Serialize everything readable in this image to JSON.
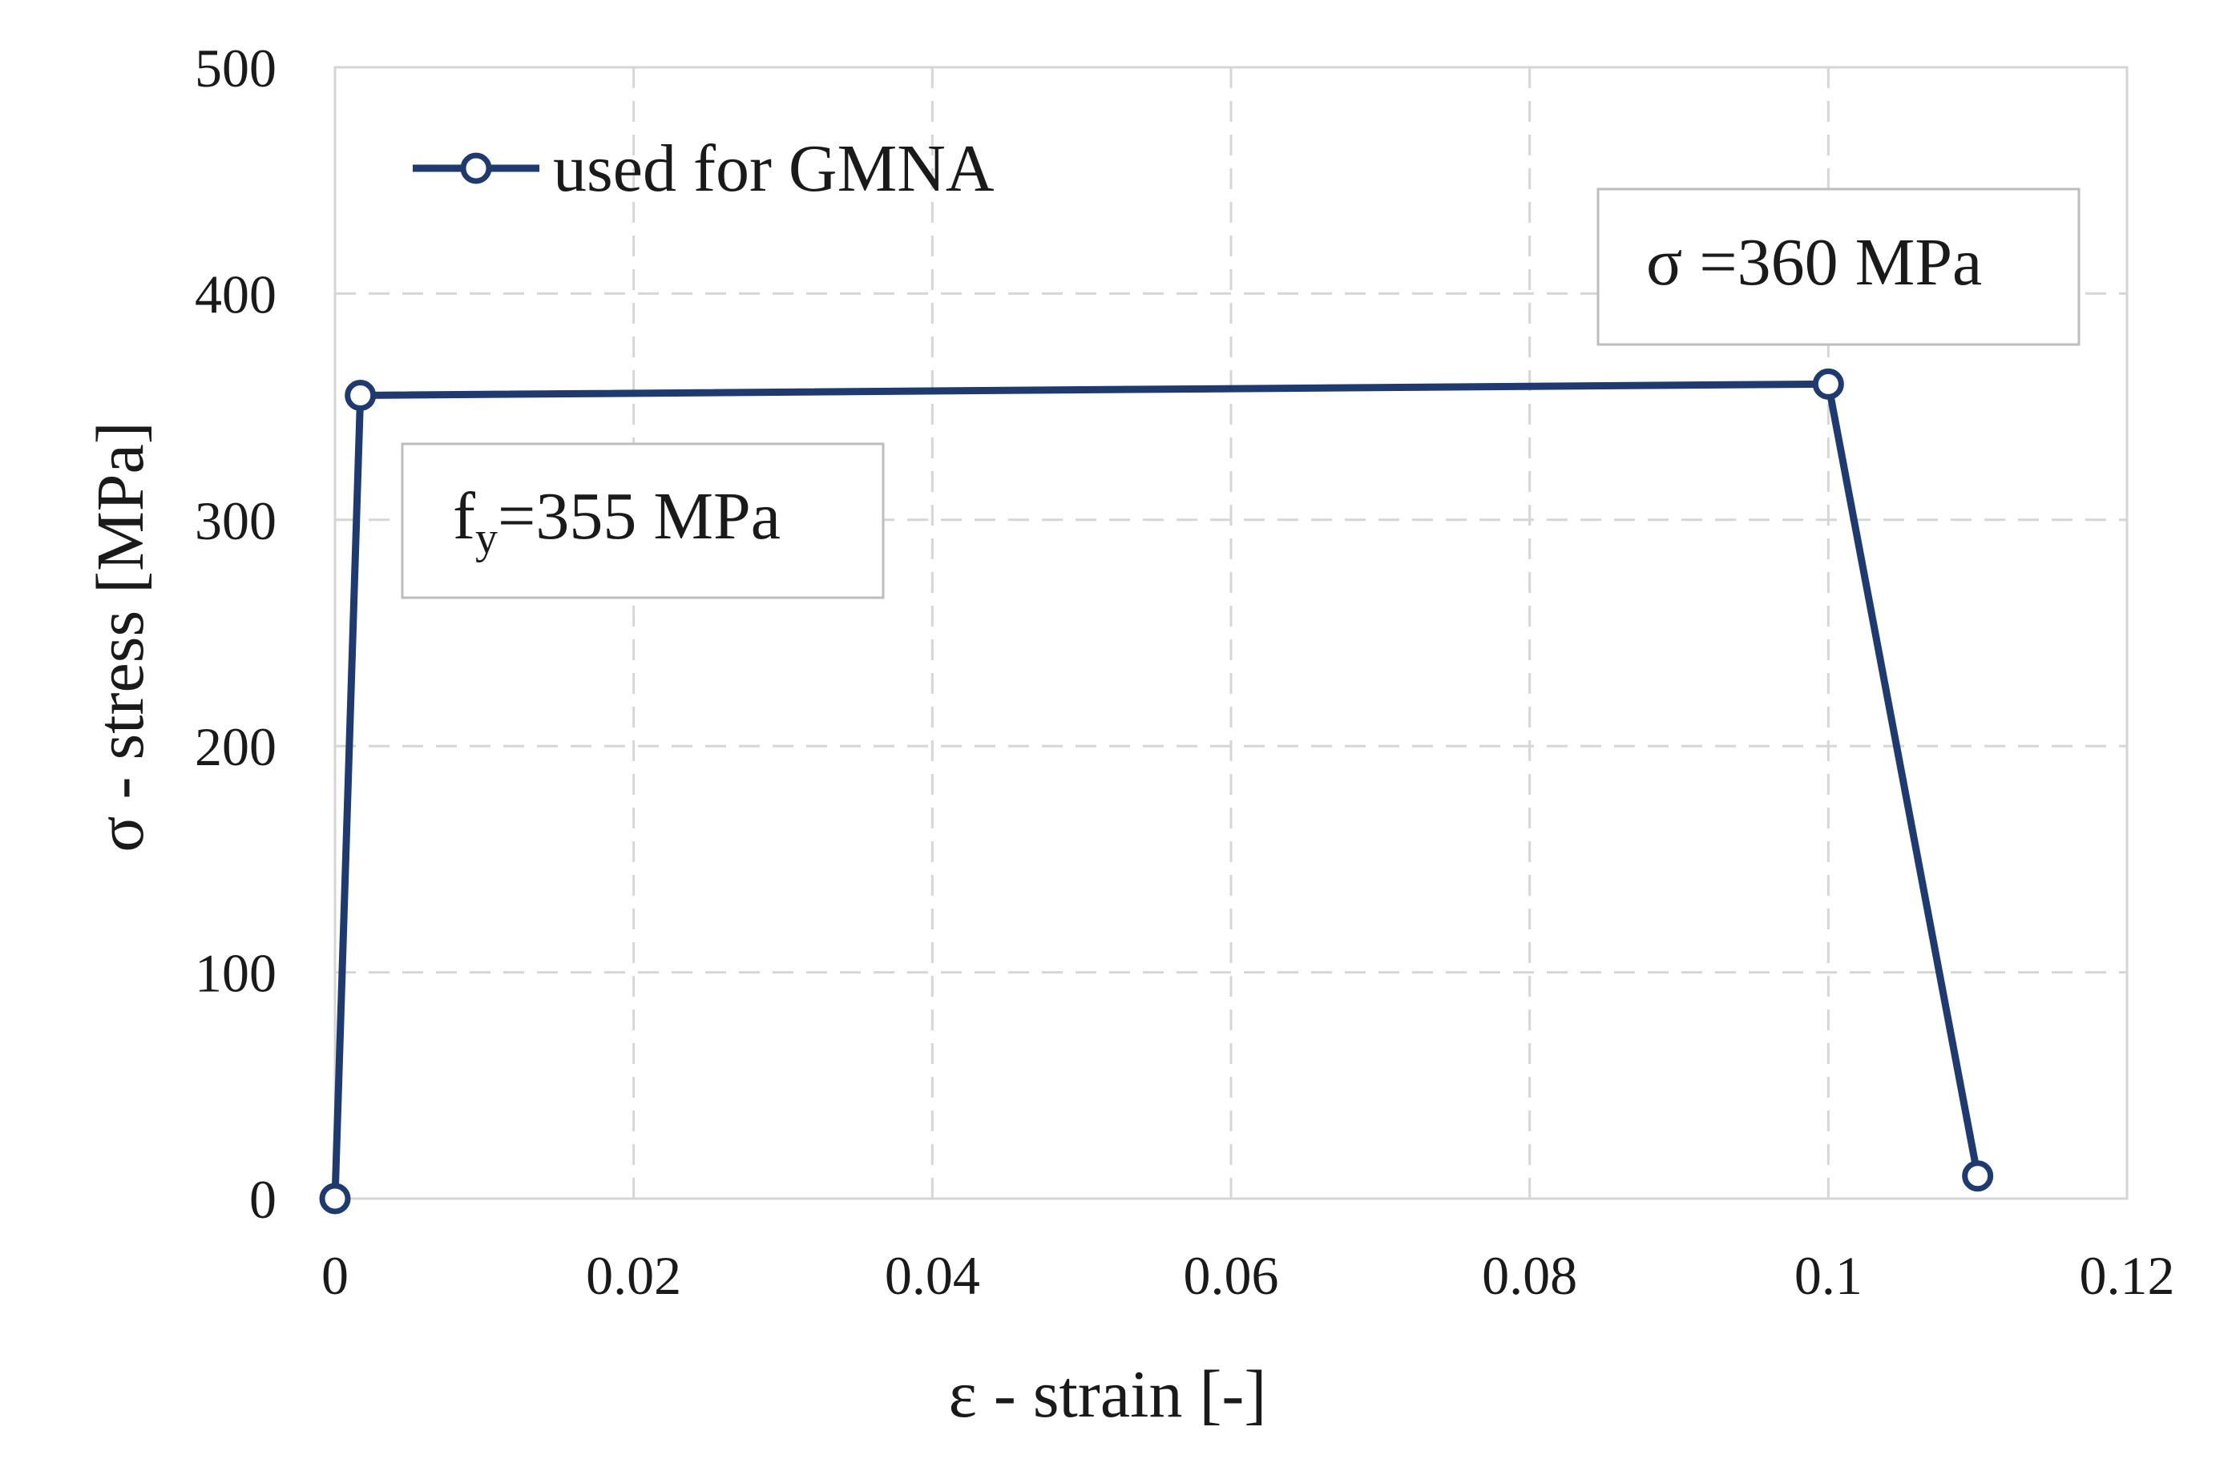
{
  "chart_data": {
    "type": "line",
    "xlabel": "ε - strain [-]",
    "ylabel": "σ - stress [MPa]",
    "xlim": [
      0,
      0.12
    ],
    "ylim": [
      0,
      500
    ],
    "x_ticks": [
      0,
      0.02,
      0.04,
      0.06,
      0.08,
      0.1,
      0.12
    ],
    "x_tick_labels": [
      "0",
      "0.02",
      "0.04",
      "0.06",
      "0.08",
      "0.1",
      "0.12"
    ],
    "y_ticks": [
      0,
      100,
      200,
      300,
      400,
      500
    ],
    "y_tick_labels": [
      "0",
      "100",
      "200",
      "300",
      "400",
      "500"
    ],
    "grid": true,
    "legend_position": "top-left",
    "series": [
      {
        "name": "used for GMNA",
        "color": "#1f3a6e",
        "marker": "open-circle",
        "points": [
          {
            "x": 0,
            "y": 0
          },
          {
            "x": 0.0017,
            "y": 355
          },
          {
            "x": 0.1,
            "y": 360
          },
          {
            "x": 0.11,
            "y": 10
          }
        ]
      }
    ],
    "annotations": [
      {
        "main": "f",
        "subscript": "y",
        "rest": "=355 MPa",
        "anchor_point": 1,
        "placement": "below-right"
      },
      {
        "text": "σ =360 MPa",
        "anchor_point": 2,
        "placement": "above"
      }
    ]
  }
}
